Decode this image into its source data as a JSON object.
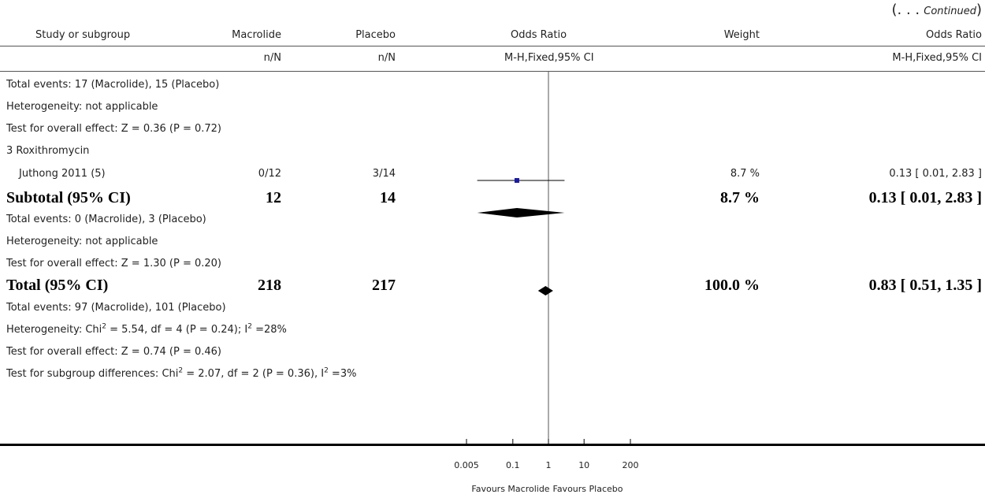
{
  "continued": {
    "open": "(. . .",
    "label": "Continued",
    "close": ")"
  },
  "header": {
    "study": "Study or subgroup",
    "group1": "Macrolide",
    "group2": "Placebo",
    "or_col": "Odds Ratio",
    "weight": "Weight",
    "or_col2": "Odds Ratio",
    "nn1": "n/N",
    "nn2": "n/N",
    "method": "M-H,Fixed,95% CI",
    "method2": "M-H,Fixed,95% CI"
  },
  "rows": {
    "t1_events": "Total events: 17 (Macrolide), 15 (Placebo)",
    "t1_het": "Heterogeneity: not applicable",
    "t1_test": "Test for overall effect: Z = 0.36 (P = 0.72)",
    "sub3_title": "3 Roxithromycin",
    "study_name": "Juthong 2011 (5)",
    "study_n1": "0/12",
    "study_n2": "3/14",
    "study_weight": "8.7 %",
    "study_ci": "0.13 [ 0.01, 2.83 ]",
    "subtotal_label": "Subtotal (95% CI)",
    "subtotal_n1": "12",
    "subtotal_n2": "14",
    "subtotal_weight": "8.7 %",
    "subtotal_ci": "0.13 [ 0.01, 2.83 ]",
    "sub_events": "Total events: 0 (Macrolide), 3 (Placebo)",
    "sub_het": "Heterogeneity: not applicable",
    "sub_test": "Test for overall effect: Z = 1.30 (P = 0.20)",
    "total_label": "Total (95% CI)",
    "total_n1": "218",
    "total_n2": "217",
    "total_weight": "100.0 %",
    "total_ci": "0.83 [ 0.51, 1.35 ]",
    "tot_events": "Total events: 97 (Macrolide), 101 (Placebo)",
    "tot_het_a": "Heterogeneity: Chi",
    "tot_het_b": " = 5.54, df = 4 (P = 0.24); I",
    "tot_het_c": " =28%",
    "tot_test": "Test for overall effect: Z = 0.74 (P = 0.46)",
    "subdiff_a": "Test for subgroup differences: Chi",
    "subdiff_b": " = 2.07, df = 2 (P = 0.36), I",
    "subdiff_c": " =3%",
    "sup2": "2"
  },
  "chart_data": {
    "type": "forest",
    "scale": "log",
    "ticks": [
      0.005,
      0.1,
      1,
      10,
      200
    ],
    "tick_labels": [
      "0.005",
      "0.1",
      "1",
      "10",
      "200"
    ],
    "xlim": [
      0.005,
      200
    ],
    "xlabel_left": "Favours Macrolide",
    "xlabel_right": "Favours Placebo",
    "studies": [
      {
        "name": "Juthong 2011 (5)",
        "or": 0.13,
        "lo": 0.01,
        "hi": 2.83,
        "weight": 8.7
      }
    ],
    "diamonds": [
      {
        "name": "Subtotal (95% CI)",
        "or": 0.13,
        "lo": 0.01,
        "hi": 2.83
      },
      {
        "name": "Total (95% CI)",
        "or": 0.83,
        "lo": 0.51,
        "hi": 1.35
      }
    ],
    "colors": {
      "marker": "#1a1aa6",
      "line": "#000000"
    }
  }
}
